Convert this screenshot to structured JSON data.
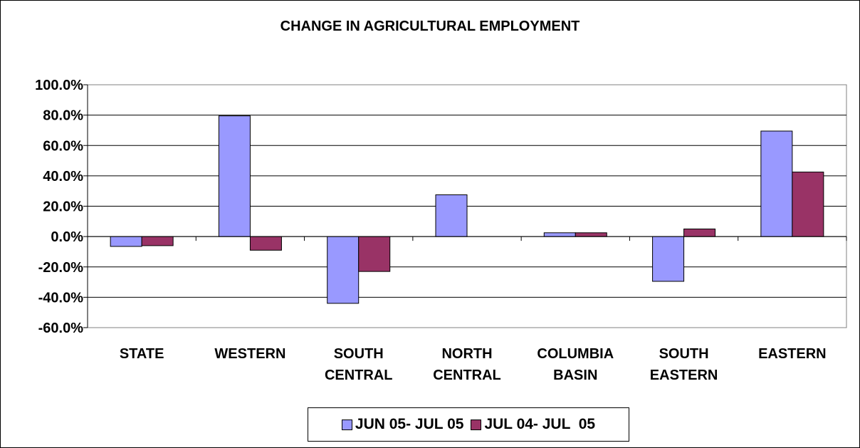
{
  "chart_data": {
    "type": "bar",
    "title": "CHANGE IN AGRICULTURAL EMPLOYMENT",
    "categories": [
      [
        "STATE"
      ],
      [
        "WESTERN"
      ],
      [
        "SOUTH",
        "CENTRAL"
      ],
      [
        "NORTH",
        "CENTRAL"
      ],
      [
        "COLUMBIA",
        "BASIN"
      ],
      [
        "SOUTH",
        "EASTERN"
      ],
      [
        "EASTERN"
      ]
    ],
    "series": [
      {
        "name": "JUN 05- JUL 05",
        "color": "#9999ff",
        "values": [
          -6.5,
          79.5,
          -44.0,
          27.5,
          2.5,
          -29.5,
          69.5
        ]
      },
      {
        "name": "JUL 04- JUL  05",
        "color": "#993366",
        "values": [
          -6.0,
          -9.0,
          -23.0,
          0.0,
          2.5,
          5.0,
          42.5
        ]
      }
    ],
    "ylim": [
      -60,
      100
    ],
    "yticks": [
      100,
      80,
      60,
      40,
      20,
      0,
      -20,
      -40,
      -60
    ],
    "ytick_labels": [
      "100.0%",
      "80.0%",
      "60.0%",
      "40.0%",
      "20.0%",
      "0.0%",
      "-20.0%",
      "-40.0%",
      "-60.0%"
    ],
    "grid": true,
    "legend_position": "bottom"
  }
}
